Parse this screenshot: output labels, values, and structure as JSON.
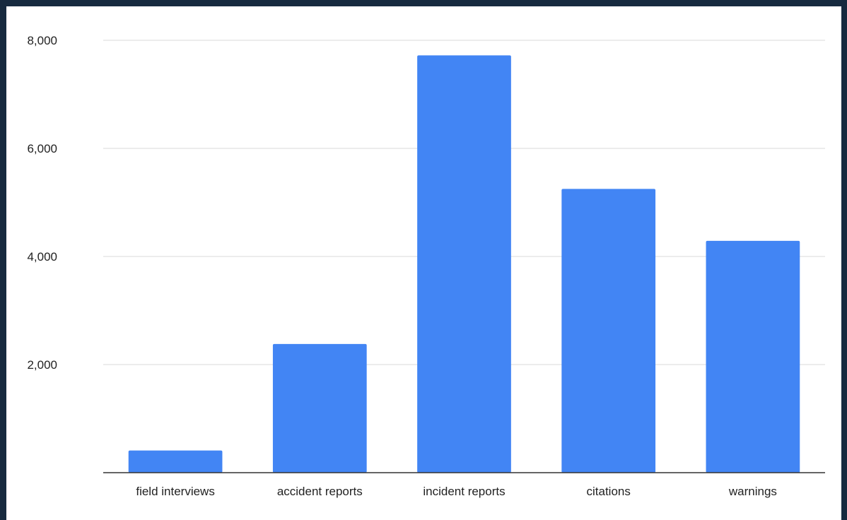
{
  "chart_data": {
    "type": "bar",
    "title": "",
    "xlabel": "",
    "ylabel": "",
    "categories": [
      "field interviews",
      "accident reports",
      "incident reports",
      "citations",
      "warnings"
    ],
    "values": [
      410,
      2380,
      7720,
      5250,
      4290
    ],
    "ylim": [
      0,
      8000
    ],
    "yticks": [
      2000,
      4000,
      6000,
      8000
    ],
    "ytick_labels": [
      "2,000",
      "4,000",
      "6,000",
      "8,000"
    ],
    "grid": true,
    "legend": "none",
    "bar_color": "#4285f4"
  }
}
